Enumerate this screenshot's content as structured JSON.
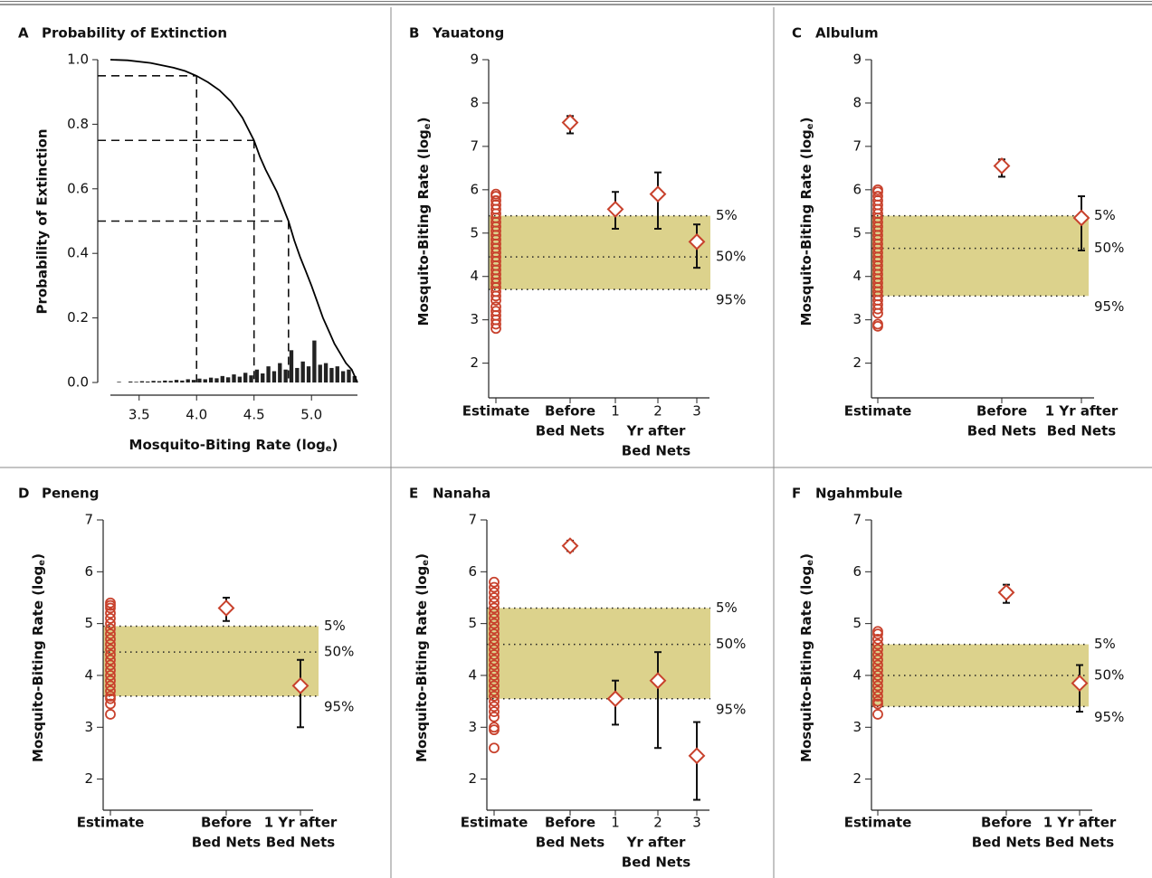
{
  "chart_data": [
    {
      "type": "line",
      "panel": "A",
      "title": "Probability of Extinction",
      "xlabel": {
        "text": "Mosquito-Biting Rate (log",
        "sub": "e",
        "end": ")"
      },
      "ylabel": "Probability of Extinction",
      "xlim": [
        3.25,
        5.4
      ],
      "ylim": [
        0,
        1
      ],
      "xticks": [
        3.5,
        {
          "value": 4,
          "label": "4.0"
        },
        4.5,
        {
          "value": 5,
          "label": "5.0"
        }
      ],
      "yticks": [
        {
          "value": 0,
          "label": "0.0"
        },
        0.2,
        0.4,
        0.6,
        0.8,
        {
          "value": 1,
          "label": "1.0"
        }
      ],
      "x": [
        3.25,
        3.4,
        3.6,
        3.8,
        3.9,
        4.0,
        4.1,
        4.2,
        4.3,
        4.4,
        4.5,
        4.55,
        4.6,
        4.7,
        4.8,
        4.85,
        4.9,
        4.95,
        5.0,
        5.05,
        5.1,
        5.15,
        5.2,
        5.25,
        5.3,
        5.35,
        5.4
      ],
      "y": [
        1.0,
        0.998,
        0.99,
        0.975,
        0.965,
        0.95,
        0.93,
        0.905,
        0.87,
        0.82,
        0.75,
        0.7,
        0.66,
        0.59,
        0.5,
        0.44,
        0.39,
        0.345,
        0.3,
        0.25,
        0.2,
        0.16,
        0.12,
        0.09,
        0.06,
        0.04,
        0.0
      ],
      "reference_points": {
        "x": [
          4.0,
          4.5,
          4.8
        ],
        "y": [
          0.95,
          0.75,
          0.5
        ]
      },
      "histogram": {
        "bins": [
          3.3,
          3.35,
          3.4,
          3.45,
          3.5,
          3.55,
          3.6,
          3.65,
          3.7,
          3.75,
          3.8,
          3.85,
          3.9,
          3.95,
          4.0,
          4.05,
          4.1,
          4.15,
          4.2,
          4.25,
          4.3,
          4.35,
          4.4,
          4.45,
          4.5,
          4.55,
          4.6,
          4.65,
          4.7,
          4.75,
          4.8,
          4.85,
          4.9,
          4.95,
          5.0,
          5.05,
          5.1,
          5.15,
          5.2,
          5.25,
          5.3,
          5.35,
          5.4
        ],
        "values": [
          0.002,
          0,
          0.003,
          0.002,
          0.004,
          0.003,
          0.005,
          0.004,
          0.006,
          0.005,
          0.008,
          0.006,
          0.01,
          0.008,
          0.012,
          0.01,
          0.015,
          0.013,
          0.02,
          0.016,
          0.025,
          0.018,
          0.03,
          0.022,
          0.04,
          0.028,
          0.05,
          0.035,
          0.06,
          0.04,
          0.1,
          0.045,
          0.065,
          0.05,
          0.13,
          0.055,
          0.06,
          0.045,
          0.05,
          0.035,
          0.04,
          0.02
        ]
      },
      "color": "#000000"
    },
    {
      "type": "interval",
      "panel": "B",
      "title": "Yauatong",
      "ylabel": {
        "text": "Mosquito-Biting Rate (log",
        "sub": "e",
        "end": ")"
      },
      "ylim": [
        1.2,
        9
      ],
      "yticks": [
        2,
        3,
        4,
        5,
        6,
        7,
        8,
        9
      ],
      "categories": [
        [
          "Estimate"
        ],
        [
          "Before",
          "Bed Nets"
        ],
        [
          "1"
        ],
        [
          "2"
        ],
        [
          "3"
        ]
      ],
      "group_label": [
        "Yr after",
        "Bed Nets"
      ],
      "estimates": [
        2.8,
        2.9,
        3.0,
        3.1,
        3.2,
        3.3,
        3.45,
        3.55,
        3.65,
        3.75,
        3.85,
        3.95,
        4.05,
        4.15,
        4.25,
        4.35,
        4.45,
        4.55,
        4.65,
        4.75,
        4.85,
        4.95,
        5.05,
        5.15,
        5.25,
        5.35,
        5.45,
        5.55,
        5.65,
        5.75,
        5.85,
        5.9
      ],
      "values": [
        null,
        7.55,
        5.55,
        5.9,
        4.8
      ],
      "lower": [
        null,
        7.3,
        5.1,
        5.1,
        4.2
      ],
      "upper": [
        null,
        7.7,
        5.95,
        6.4,
        5.2
      ],
      "quantiles": [
        {
          "label": "5%",
          "value": 5.4
        },
        {
          "label": "50%",
          "value": 4.45
        },
        {
          "label": "95%",
          "value": 3.7
        }
      ],
      "marker_color": "#c8412c",
      "band_color": "#dcd28c"
    },
    {
      "type": "interval",
      "panel": "C",
      "title": "Albulum",
      "ylabel": {
        "text": "Mosquito-Biting Rate (log",
        "sub": "e",
        "end": ")"
      },
      "ylim": [
        1.2,
        9
      ],
      "yticks": [
        2,
        3,
        4,
        5,
        6,
        7,
        8,
        9
      ],
      "categories": [
        [
          "Estimate"
        ],
        [
          "Before",
          "Bed Nets"
        ],
        [
          "1 Yr after",
          "Bed Nets"
        ]
      ],
      "estimates": [
        2.85,
        2.9,
        3.15,
        3.25,
        3.35,
        3.45,
        3.55,
        3.65,
        3.75,
        3.85,
        3.95,
        4.05,
        4.15,
        4.25,
        4.35,
        4.45,
        4.55,
        4.65,
        4.75,
        4.85,
        4.95,
        5.05,
        5.15,
        5.25,
        5.35,
        5.45,
        5.55,
        5.65,
        5.75,
        5.85,
        5.95,
        6.0
      ],
      "values": [
        null,
        6.55,
        5.35
      ],
      "lower": [
        null,
        6.3,
        4.6
      ],
      "upper": [
        null,
        6.7,
        5.85
      ],
      "quantiles": [
        {
          "label": "5%",
          "value": 5.4
        },
        {
          "label": "50%",
          "value": 4.65
        },
        {
          "label": "95%",
          "value": 3.55
        }
      ],
      "marker_color": "#c8412c",
      "band_color": "#dcd28c"
    },
    {
      "type": "interval",
      "panel": "D",
      "title": "Peneng",
      "ylabel": {
        "text": "Mosquito-Biting Rate (log",
        "sub": "e",
        "end": ")"
      },
      "ylim": [
        1.4,
        7
      ],
      "yticks": [
        2,
        3,
        4,
        5,
        6,
        7
      ],
      "categories": [
        [
          "Estimate"
        ],
        [
          "Before",
          "Bed Nets"
        ],
        [
          "1 Yr after",
          "Bed Nets"
        ]
      ],
      "estimates": [
        3.25,
        3.45,
        3.55,
        3.6,
        3.7,
        3.8,
        3.9,
        4.0,
        4.1,
        4.2,
        4.3,
        4.4,
        4.5,
        4.6,
        4.7,
        4.8,
        4.9,
        5.0,
        5.1,
        5.2,
        5.3,
        5.35,
        5.4
      ],
      "values": [
        null,
        5.3,
        3.8
      ],
      "lower": [
        null,
        5.05,
        3.0
      ],
      "upper": [
        null,
        5.5,
        4.3
      ],
      "quantiles": [
        {
          "label": "5%",
          "value": 4.95
        },
        {
          "label": "50%",
          "value": 4.45
        },
        {
          "label": "95%",
          "value": 3.6
        }
      ],
      "marker_color": "#c8412c",
      "band_color": "#dcd28c"
    },
    {
      "type": "interval",
      "panel": "E",
      "title": "Nanaha",
      "ylabel": {
        "text": "Mosquito-Biting Rate (log",
        "sub": "e",
        "end": ")"
      },
      "ylim": [
        1.4,
        7
      ],
      "yticks": [
        2,
        3,
        4,
        5,
        6,
        7
      ],
      "categories": [
        [
          "Estimate"
        ],
        [
          "Before",
          "Bed Nets"
        ],
        [
          "1"
        ],
        [
          "2"
        ],
        [
          "3"
        ]
      ],
      "group_label": [
        "Yr after",
        "Bed Nets"
      ],
      "estimates": [
        2.6,
        2.95,
        3.0,
        3.2,
        3.3,
        3.4,
        3.5,
        3.6,
        3.7,
        3.8,
        3.9,
        4.0,
        4.1,
        4.2,
        4.3,
        4.4,
        4.5,
        4.6,
        4.7,
        4.8,
        4.9,
        5.0,
        5.1,
        5.2,
        5.3,
        5.4,
        5.5,
        5.6,
        5.7,
        5.8
      ],
      "values": [
        null,
        6.5,
        3.55,
        3.9,
        2.45
      ],
      "lower": [
        null,
        6.4,
        3.05,
        2.6,
        1.6
      ],
      "upper": [
        null,
        6.6,
        3.9,
        4.45,
        3.1
      ],
      "quantiles": [
        {
          "label": "5%",
          "value": 5.3
        },
        {
          "label": "50%",
          "value": 4.6
        },
        {
          "label": "95%",
          "value": 3.55
        }
      ],
      "marker_color": "#c8412c",
      "band_color": "#dcd28c"
    },
    {
      "type": "interval",
      "panel": "F",
      "title": "Ngahmbule",
      "ylabel": {
        "text": "Mosquito-Biting Rate (log",
        "sub": "e",
        "end": ")"
      },
      "ylim": [
        1.4,
        7
      ],
      "yticks": [
        2,
        3,
        4,
        5,
        6,
        7
      ],
      "categories": [
        [
          "Estimate"
        ],
        [
          "Before",
          "Bed Nets"
        ],
        [
          "1 Yr after",
          "Bed Nets"
        ]
      ],
      "estimates": [
        3.25,
        3.45,
        3.5,
        3.6,
        3.7,
        3.8,
        3.9,
        4.0,
        4.1,
        4.2,
        4.3,
        4.4,
        4.5,
        4.6,
        4.7,
        4.8,
        4.85
      ],
      "values": [
        null,
        5.6,
        3.85
      ],
      "lower": [
        null,
        5.4,
        3.3
      ],
      "upper": [
        null,
        5.75,
        4.2
      ],
      "quantiles": [
        {
          "label": "5%",
          "value": 4.6
        },
        {
          "label": "50%",
          "value": 4.0
        },
        {
          "label": "95%",
          "value": 3.4
        }
      ],
      "marker_color": "#c8412c",
      "band_color": "#dcd28c"
    }
  ]
}
